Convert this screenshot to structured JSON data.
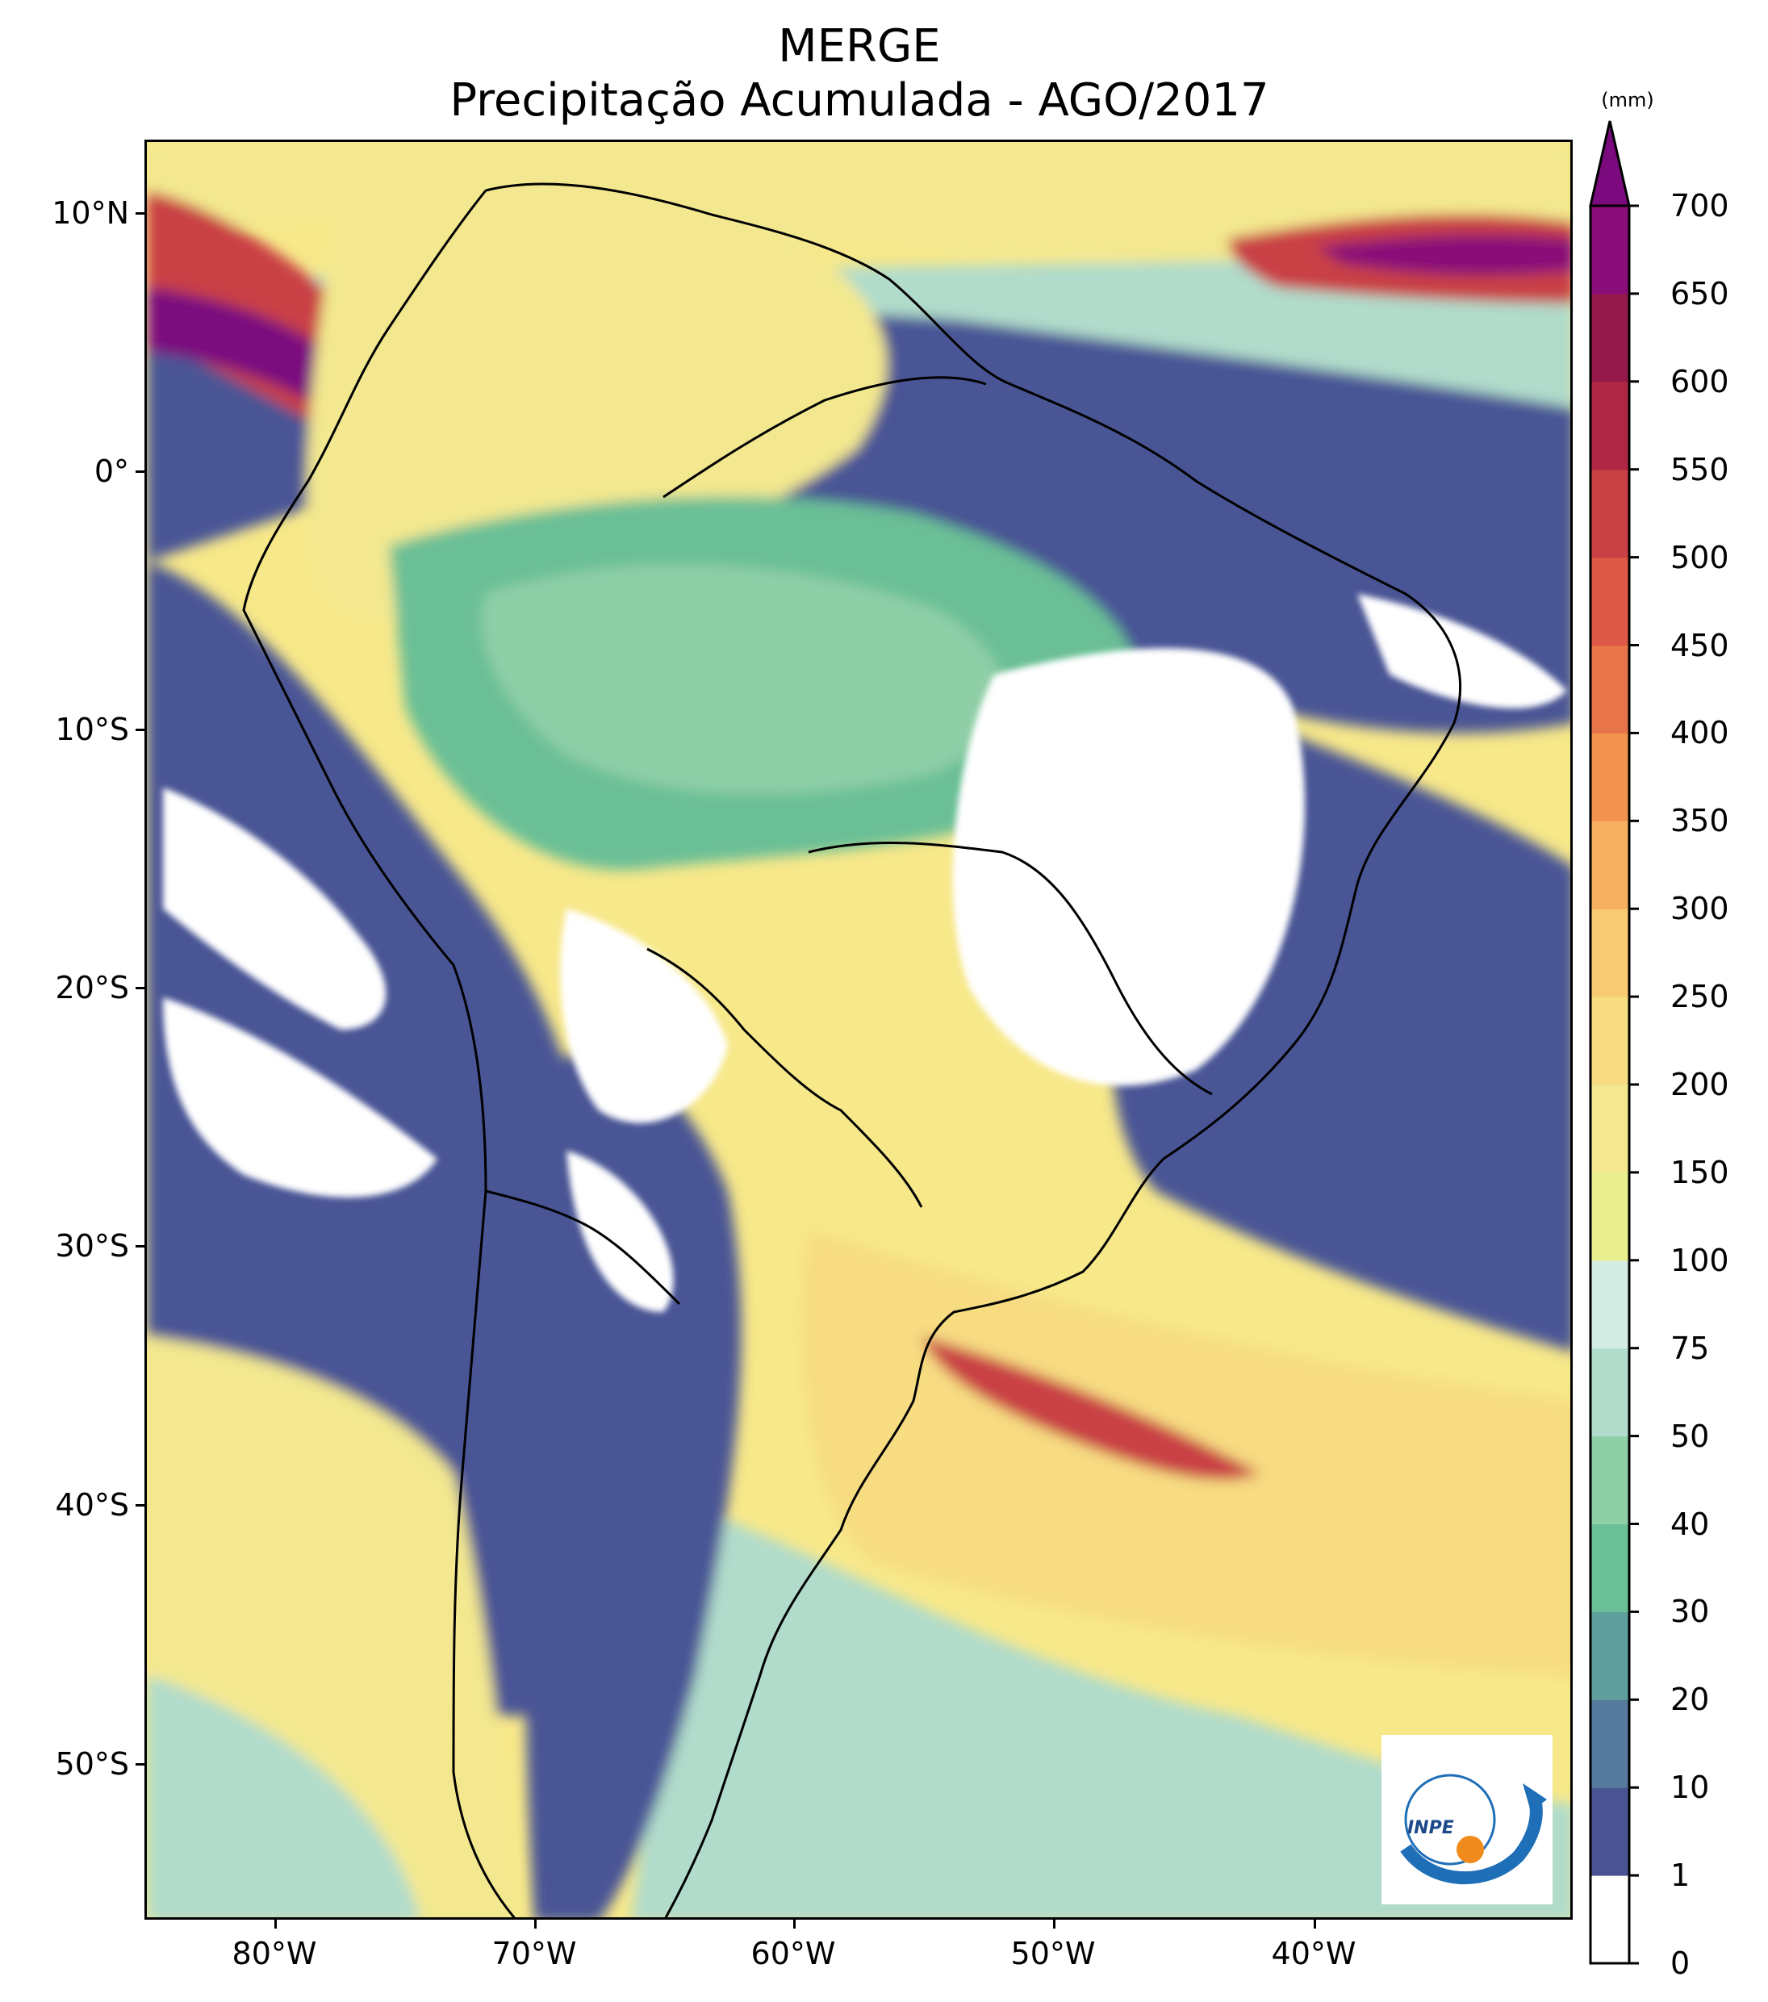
{
  "title": "MERGE",
  "subtitle": "Precipitação Acumulada - AGO/2017",
  "colorbar": {
    "unit": "(mm)",
    "levels": [
      "0",
      "1",
      "10",
      "20",
      "30",
      "40",
      "50",
      "75",
      "100",
      "150",
      "200",
      "250",
      "300",
      "350",
      "400",
      "450",
      "500",
      "550",
      "600",
      "650",
      "700"
    ],
    "colors": [
      "#ffffff",
      "#4a5495",
      "#557a9c",
      "#5f9f9d",
      "#6bbf96",
      "#8fcfa7",
      "#b1dccb",
      "#d4ece4",
      "#e9ef8e",
      "#f3e88f",
      "#f7dc82",
      "#f8cb73",
      "#f6b061",
      "#f2944f",
      "#e8744a",
      "#dd5846",
      "#c94045",
      "#b02746",
      "#951a4a",
      "#8a0c78"
    ],
    "over_color": "#7b0a7e",
    "extend": "max"
  },
  "axes": {
    "lat_labels": [
      "10°N",
      "0°",
      "10°S",
      "20°S",
      "30°S",
      "40°S",
      "50°S"
    ],
    "lon_labels": [
      "80°W",
      "70°W",
      "60°W",
      "50°W",
      "40°W"
    ],
    "lon_range": [
      -85,
      -30
    ],
    "lat_range": [
      -56,
      13
    ]
  },
  "logo": {
    "text": "INPE",
    "colors": {
      "blue": "#1e6eb8",
      "orange": "#f08c1e"
    }
  }
}
